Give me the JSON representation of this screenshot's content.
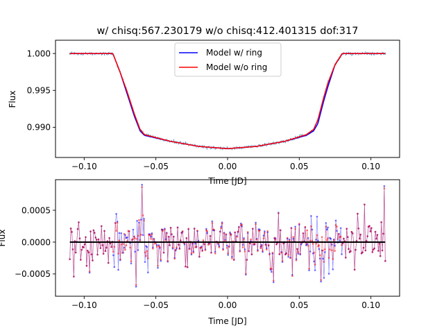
{
  "figure": {
    "title": "w/ chisq:567.230179 w/o chisq:412.401315 dof:317"
  },
  "chart_data": [
    {
      "type": "line",
      "panel": "top",
      "title": "w/ chisq:567.230179 w/o chisq:412.401315 dof:317",
      "xlabel": "Time [JD]",
      "ylabel": "Flux",
      "xlim": [
        -0.12,
        0.12
      ],
      "ylim": [
        0.9859,
        1.0018
      ],
      "xticks": [
        -0.1,
        -0.05,
        0.0,
        0.05,
        0.1
      ],
      "xtick_labels": [
        "−0.10",
        "−0.05",
        "0.00",
        "0.05",
        "0.10"
      ],
      "yticks": [
        0.99,
        0.995,
        1.0
      ],
      "ytick_labels": [
        "0.990",
        "0.995",
        "1.000"
      ],
      "grid": false,
      "legend_position": "upper-center",
      "x_range": [
        -0.11,
        0.11
      ],
      "n_points": 320,
      "series": [
        {
          "name": "Model w/ ring",
          "color": "#0000ff",
          "x": [
            -0.11,
            -0.08,
            -0.075,
            -0.07,
            -0.065,
            -0.061,
            -0.058,
            -0.04,
            -0.02,
            0.0,
            0.02,
            0.04,
            0.055,
            0.06,
            0.063,
            0.067,
            0.07,
            0.075,
            0.08,
            0.11
          ],
          "y": [
            1.0,
            1.0,
            0.9975,
            0.9945,
            0.9915,
            0.9895,
            0.9889,
            0.9881,
            0.9874,
            0.9871,
            0.9874,
            0.9881,
            0.9889,
            0.9895,
            0.9905,
            0.9935,
            0.9955,
            0.9985,
            1.0,
            1.0
          ]
        },
        {
          "name": "Model w/o ring",
          "color": "#ff0000",
          "x": [
            -0.11,
            -0.08,
            -0.075,
            -0.07,
            -0.065,
            -0.061,
            -0.058,
            -0.04,
            -0.02,
            0.0,
            0.02,
            0.04,
            0.055,
            0.06,
            0.063,
            0.067,
            0.07,
            0.075,
            0.08,
            0.11
          ],
          "y": [
            1.0,
            1.0,
            0.9975,
            0.9948,
            0.9918,
            0.9897,
            0.989,
            0.9881,
            0.9874,
            0.9871,
            0.9874,
            0.9881,
            0.989,
            0.9897,
            0.991,
            0.994,
            0.996,
            0.9985,
            1.0,
            1.0
          ]
        },
        {
          "name": "data",
          "style": "errorbar",
          "color": "#1f77b4",
          "noise_sigma": 0.00016
        }
      ]
    },
    {
      "type": "scatter",
      "panel": "bottom",
      "xlabel": "Time [JD]",
      "ylabel": "Flux",
      "xlim": [
        -0.12,
        0.12
      ],
      "ylim": [
        -0.00085,
        0.00098
      ],
      "xticks": [
        -0.1,
        -0.05,
        0.0,
        0.05,
        0.1
      ],
      "xtick_labels": [
        "−0.10",
        "−0.05",
        "0.00",
        "0.05",
        "0.10"
      ],
      "yticks": [
        -0.0005,
        0.0,
        0.0005
      ],
      "ytick_labels": [
        "−0.0005",
        "0.0000",
        "0.0005"
      ],
      "grid": false,
      "x_range": [
        -0.11,
        0.11
      ],
      "n_points": 320,
      "residual_sigma": 0.00022,
      "notable_points": [
        {
          "x": -0.06,
          "y": 0.0009
        },
        {
          "x": -0.064,
          "y": -0.0007
        },
        {
          "x": 0.109,
          "y": 0.00088
        },
        {
          "x": 0.032,
          "y": -0.00063
        },
        {
          "x": 0.065,
          "y": -0.00062
        },
        {
          "x": -0.096,
          "y": -0.00048
        }
      ],
      "series": [
        {
          "name": "residual w/ ring",
          "color": "#0000ff"
        },
        {
          "name": "residual w/o ring",
          "color": "#ff0000"
        },
        {
          "name": "zero",
          "color": "#000000",
          "x": [
            -0.11,
            0.11
          ],
          "y": [
            0,
            0
          ]
        }
      ]
    }
  ]
}
